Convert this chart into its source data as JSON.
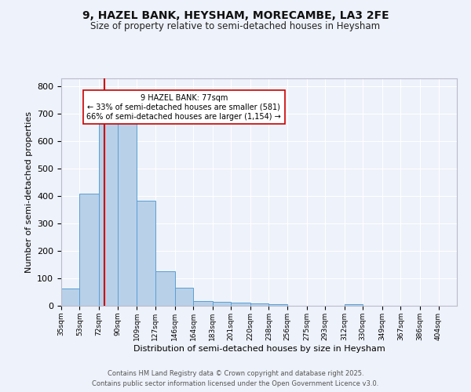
{
  "title": "9, HAZEL BANK, HEYSHAM, MORECAMBE, LA3 2FE",
  "subtitle": "Size of property relative to semi-detached houses in Heysham",
  "xlabel": "Distribution of semi-detached houses by size in Heysham",
  "ylabel": "Number of semi-detached properties",
  "footer_line1": "Contains HM Land Registry data © Crown copyright and database right 2025.",
  "footer_line2": "Contains public sector information licensed under the Open Government Licence v3.0.",
  "annotation_title": "9 HAZEL BANK: 77sqm",
  "annotation_line2": "← 33% of semi-detached houses are smaller (581)",
  "annotation_line3": "66% of semi-detached houses are larger (1,154) →",
  "property_size": 77,
  "bar_color": "#b8d0e8",
  "bar_edge_color": "#5a9fd4",
  "marker_line_color": "#cc0000",
  "background_color": "#eef2fa",
  "plot_bg_color": "#eef2fa",
  "categories": [
    "35sqm",
    "53sqm",
    "72sqm",
    "90sqm",
    "109sqm",
    "127sqm",
    "146sqm",
    "164sqm",
    "183sqm",
    "201sqm",
    "220sqm",
    "238sqm",
    "256sqm",
    "275sqm",
    "293sqm",
    "312sqm",
    "330sqm",
    "349sqm",
    "367sqm",
    "386sqm",
    "404sqm"
  ],
  "values": [
    62,
    408,
    670,
    670,
    383,
    125,
    65,
    18,
    14,
    12,
    8,
    7,
    0,
    0,
    0,
    6,
    0,
    0,
    0,
    0,
    0
  ],
  "bin_edges": [
    35,
    53,
    72,
    90,
    109,
    127,
    146,
    164,
    183,
    201,
    220,
    238,
    256,
    275,
    293,
    312,
    330,
    349,
    367,
    386,
    404,
    422
  ],
  "ylim": [
    0,
    830
  ],
  "yticks": [
    0,
    100,
    200,
    300,
    400,
    500,
    600,
    700,
    800
  ]
}
